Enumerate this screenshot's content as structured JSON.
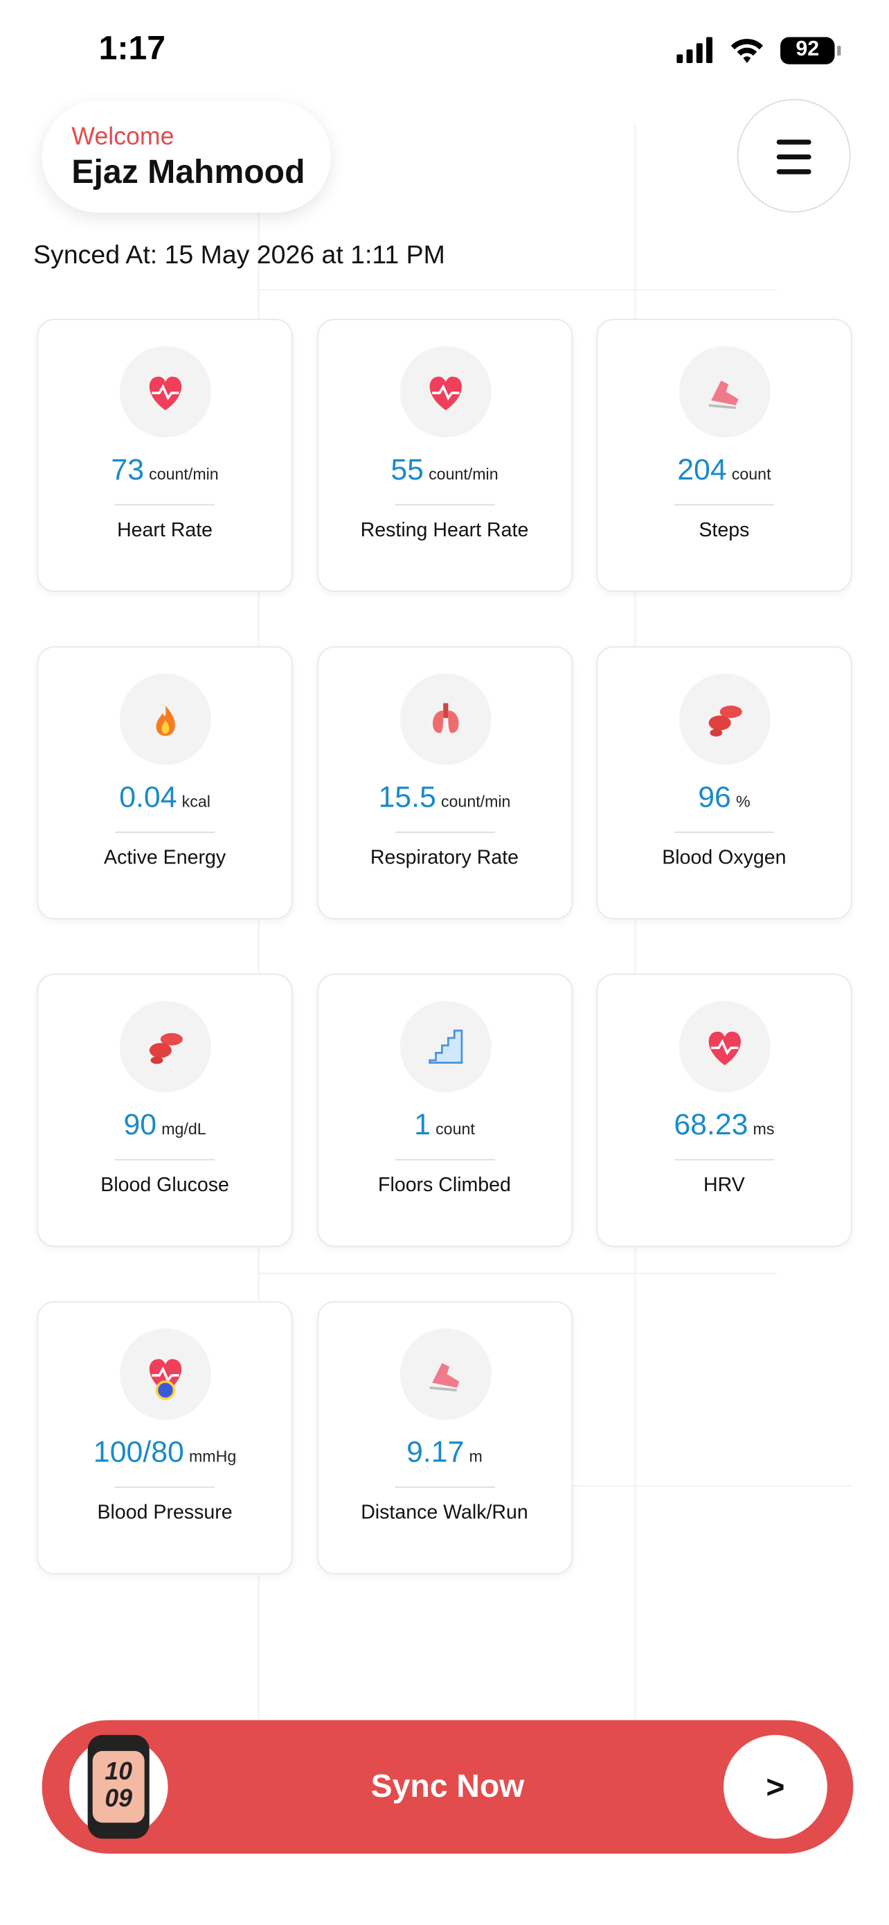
{
  "status_bar": {
    "time": "1:17",
    "battery": "92"
  },
  "header": {
    "greeting": "Welcome",
    "name": "Ejaz Mahmood",
    "synced": "Synced At: 15 May 2026 at 1:11 PM"
  },
  "cards": [
    {
      "value": "73",
      "unit": "count/min",
      "label": "Heart Rate"
    },
    {
      "value": "55",
      "unit": "count/min",
      "label": "Resting Heart Rate"
    },
    {
      "value": "204",
      "unit": "count",
      "label": "Steps"
    },
    {
      "value": "0.04",
      "unit": "kcal",
      "label": "Active Energy"
    },
    {
      "value": "15.5",
      "unit": "count/min",
      "label": "Respiratory Rate"
    },
    {
      "value": "96",
      "unit": "%",
      "label": "Blood Oxygen"
    },
    {
      "value": "90",
      "unit": "mg/dL",
      "label": "Blood Glucose"
    },
    {
      "value": "1",
      "unit": "count",
      "label": "Floors Climbed"
    },
    {
      "value": "68.23",
      "unit": "ms",
      "label": "HRV"
    },
    {
      "value": "100/80",
      "unit": "mmHg",
      "label": "Blood Pressure"
    },
    {
      "value": "9.17",
      "unit": "m",
      "label": "Distance Walk/Run"
    }
  ],
  "sync_button": {
    "label": "Sync Now",
    "arrow": ">",
    "watch_hours": "10",
    "watch_minutes": "09"
  }
}
